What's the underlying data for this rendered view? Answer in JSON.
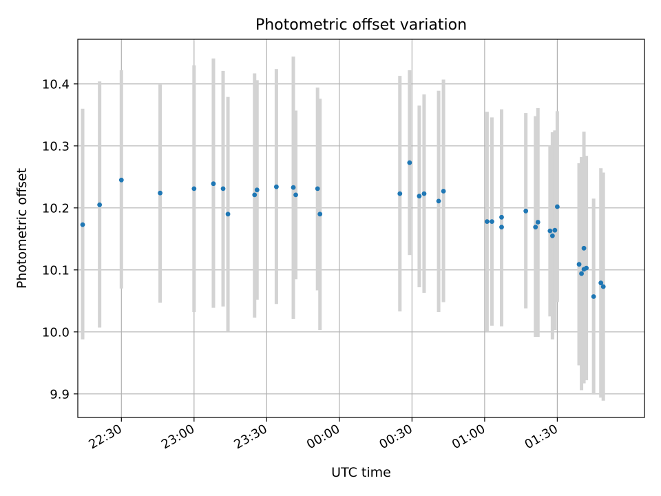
{
  "chart_data": {
    "type": "scatter",
    "title": "Photometric offset variation",
    "xlabel": "UTC time",
    "ylabel": "Photometric offset",
    "xlim": [
      "22:12",
      "02:06"
    ],
    "ylim": [
      9.862,
      10.472
    ],
    "x_ticks": [
      "22:30",
      "23:00",
      "23:30",
      "00:00",
      "00:30",
      "01:00",
      "01:30"
    ],
    "y_ticks": [
      9.9,
      10.0,
      10.1,
      10.2,
      10.3,
      10.4
    ],
    "y_tick_labels": [
      "9.9",
      "10.0",
      "10.1",
      "10.2",
      "10.3",
      "10.4"
    ],
    "grid": true,
    "legend": "none",
    "colors": {
      "point": "#1f77b4",
      "errorbar": "#d3d3d3",
      "grid": "#b0b0b0"
    },
    "series": [
      {
        "points": [
          {
            "x": "22:14",
            "y": 10.173,
            "ylo": 9.988,
            "yhi": 10.36
          },
          {
            "x": "22:21",
            "y": 10.205,
            "ylo": 10.007,
            "yhi": 10.404
          },
          {
            "x": "22:30",
            "y": 10.245,
            "ylo": 10.07,
            "yhi": 10.422
          },
          {
            "x": "22:46",
            "y": 10.224,
            "ylo": 10.047,
            "yhi": 10.399
          },
          {
            "x": "23:00",
            "y": 10.231,
            "ylo": 10.032,
            "yhi": 10.43
          },
          {
            "x": "23:08",
            "y": 10.239,
            "ylo": 10.039,
            "yhi": 10.441
          },
          {
            "x": "23:12",
            "y": 10.231,
            "ylo": 10.041,
            "yhi": 10.421
          },
          {
            "x": "23:14",
            "y": 10.19,
            "ylo": 10.0,
            "yhi": 10.379
          },
          {
            "x": "23:25",
            "y": 10.221,
            "ylo": 10.023,
            "yhi": 10.417
          },
          {
            "x": "23:26",
            "y": 10.229,
            "ylo": 10.052,
            "yhi": 10.406
          },
          {
            "x": "23:34",
            "y": 10.234,
            "ylo": 10.045,
            "yhi": 10.424
          },
          {
            "x": "23:41",
            "y": 10.233,
            "ylo": 10.021,
            "yhi": 10.444
          },
          {
            "x": "23:42",
            "y": 10.221,
            "ylo": 10.085,
            "yhi": 10.357
          },
          {
            "x": "23:51",
            "y": 10.231,
            "ylo": 10.067,
            "yhi": 10.394
          },
          {
            "x": "23:52",
            "y": 10.19,
            "ylo": 10.003,
            "yhi": 10.376
          },
          {
            "x": "00:25",
            "y": 10.223,
            "ylo": 10.033,
            "yhi": 10.413
          },
          {
            "x": "00:29",
            "y": 10.273,
            "ylo": 10.124,
            "yhi": 10.422
          },
          {
            "x": "00:33",
            "y": 10.219,
            "ylo": 10.072,
            "yhi": 10.365
          },
          {
            "x": "00:35",
            "y": 10.223,
            "ylo": 10.063,
            "yhi": 10.383
          },
          {
            "x": "00:41",
            "y": 10.211,
            "ylo": 10.032,
            "yhi": 10.389
          },
          {
            "x": "00:43",
            "y": 10.227,
            "ylo": 10.048,
            "yhi": 10.407
          },
          {
            "x": "01:01",
            "y": 10.178,
            "ylo": 10.0,
            "yhi": 10.355
          },
          {
            "x": "01:03",
            "y": 10.178,
            "ylo": 10.01,
            "yhi": 10.346
          },
          {
            "x": "01:07",
            "y": 10.185,
            "ylo": 10.011,
            "yhi": 10.359
          },
          {
            "x": "01:07",
            "y": 10.169,
            "ylo": 10.009,
            "yhi": 10.329
          },
          {
            "x": "01:17",
            "y": 10.195,
            "ylo": 10.038,
            "yhi": 10.353
          },
          {
            "x": "01:21",
            "y": 10.169,
            "ylo": 9.992,
            "yhi": 10.348
          },
          {
            "x": "01:22",
            "y": 10.177,
            "ylo": 9.992,
            "yhi": 10.361
          },
          {
            "x": "01:27",
            "y": 10.163,
            "ylo": 10.025,
            "yhi": 10.3
          },
          {
            "x": "01:28",
            "y": 10.155,
            "ylo": 9.988,
            "yhi": 10.322
          },
          {
            "x": "01:29",
            "y": 10.164,
            "ylo": 10.003,
            "yhi": 10.325
          },
          {
            "x": "01:30",
            "y": 10.202,
            "ylo": 10.048,
            "yhi": 10.356
          },
          {
            "x": "01:39",
            "y": 10.109,
            "ylo": 9.946,
            "yhi": 10.272
          },
          {
            "x": "01:40",
            "y": 10.094,
            "ylo": 9.906,
            "yhi": 10.282
          },
          {
            "x": "01:41",
            "y": 10.135,
            "ylo": 9.947,
            "yhi": 10.323
          },
          {
            "x": "01:41",
            "y": 10.101,
            "ylo": 9.917,
            "yhi": 10.284
          },
          {
            "x": "01:42",
            "y": 10.103,
            "ylo": 9.922,
            "yhi": 10.284
          },
          {
            "x": "01:45",
            "y": 10.057,
            "ylo": 9.899,
            "yhi": 10.215
          },
          {
            "x": "01:48",
            "y": 10.079,
            "ylo": 9.894,
            "yhi": 10.264
          },
          {
            "x": "01:49",
            "y": 10.073,
            "ylo": 9.889,
            "yhi": 10.257
          }
        ]
      }
    ]
  }
}
